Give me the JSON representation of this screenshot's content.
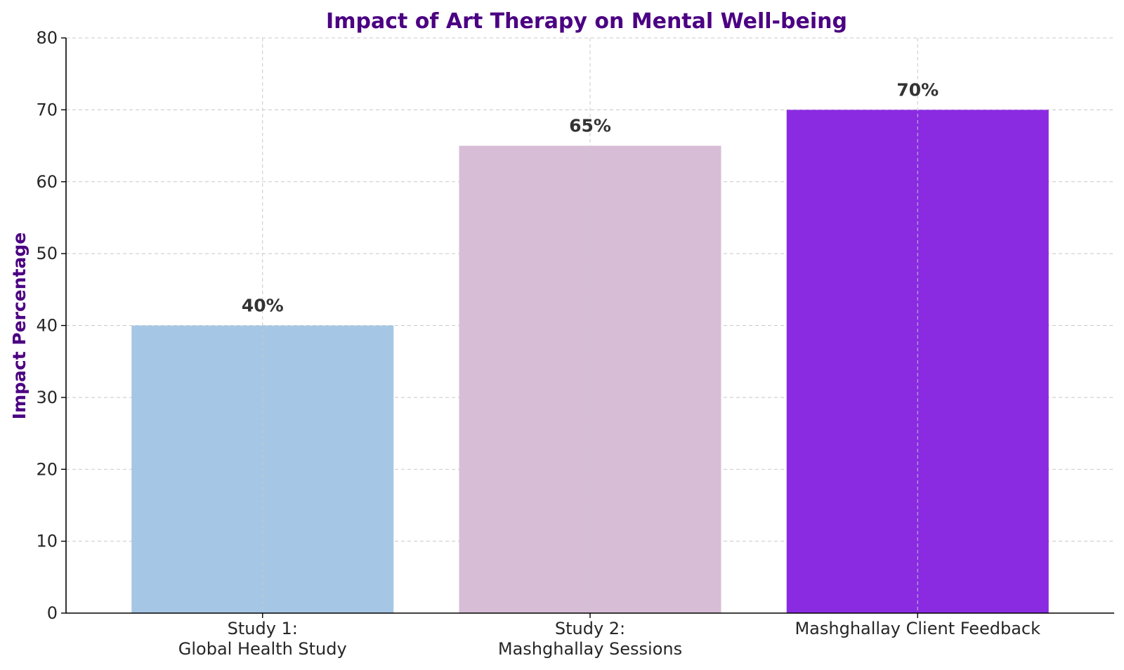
{
  "chart_data": {
    "type": "bar",
    "title": "Impact of Art Therapy on Mental Well-being",
    "ylabel": "Impact Percentage",
    "xlabel": "",
    "categories": [
      [
        "Study 1:",
        "Global Health Study"
      ],
      [
        "Study 2:",
        "Mashghallay Sessions"
      ],
      [
        "Mashghallay Client Feedback"
      ]
    ],
    "values": [
      40,
      65,
      70
    ],
    "value_labels": [
      "40%",
      "65%",
      "70%"
    ],
    "bar_colors": [
      "#a6c6e5",
      "#d7bdd6",
      "#8a2be2"
    ],
    "ylim": [
      0,
      80
    ],
    "yticks": [
      0,
      10,
      20,
      30,
      40,
      50,
      60,
      70,
      80
    ],
    "grid": true,
    "title_color": "#4b0082",
    "ylabel_color": "#4b0082"
  }
}
